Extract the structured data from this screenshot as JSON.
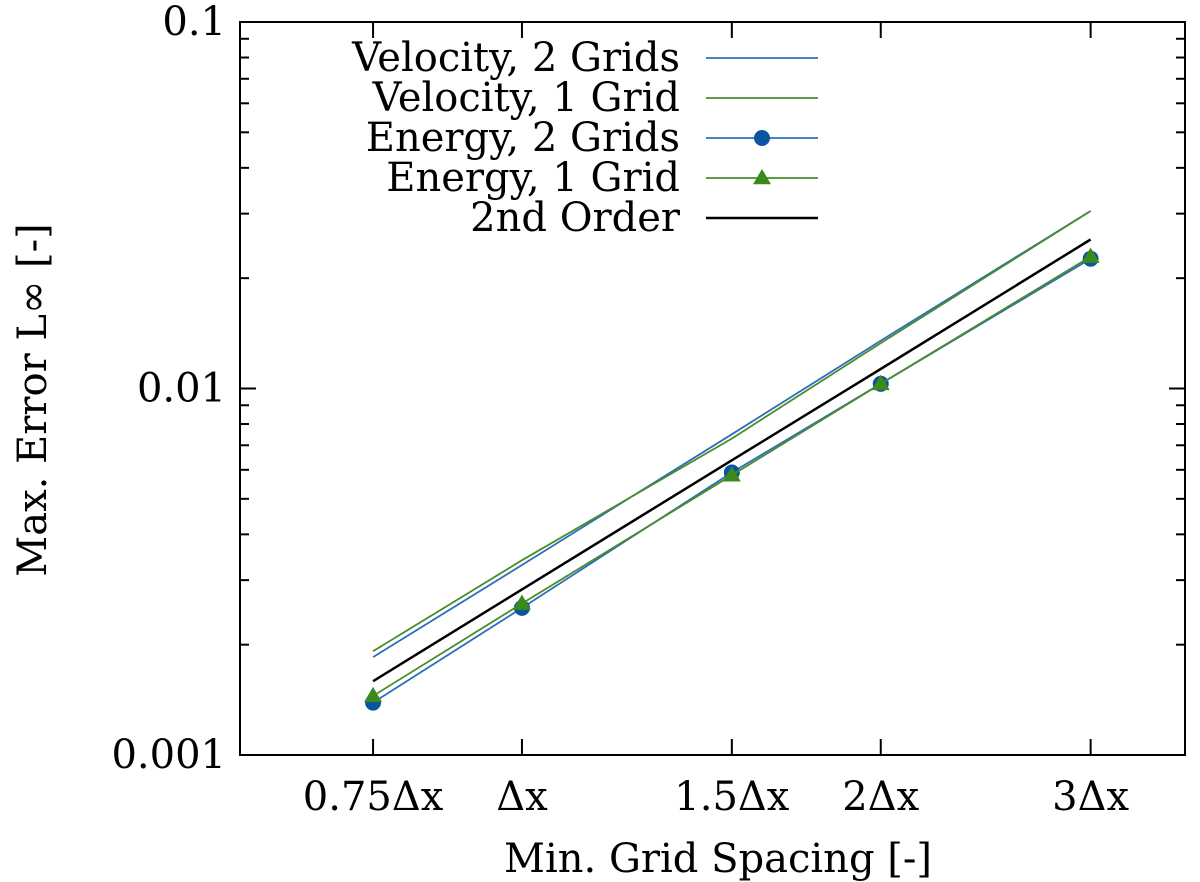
{
  "chart_data": {
    "type": "line",
    "xlabel": "Min. Grid Spacing [-]",
    "ylabel": "Max. Error L∞ [-]",
    "x_scale": "log",
    "y_scale": "log",
    "xlim": [
      0.58,
      3.6
    ],
    "ylim": [
      0.001,
      0.1
    ],
    "x_ticks": [
      {
        "value": 0.75,
        "label": "0.75Δx"
      },
      {
        "value": 1.0,
        "label": "Δx"
      },
      {
        "value": 1.5,
        "label": "1.5Δx"
      },
      {
        "value": 2.0,
        "label": "2Δx"
      },
      {
        "value": 3.0,
        "label": "3Δx"
      }
    ],
    "y_ticks": [
      {
        "value": 0.001,
        "label": "0.001"
      },
      {
        "value": 0.01,
        "label": "0.01"
      },
      {
        "value": 0.1,
        "label": "0.1"
      }
    ],
    "grid": false,
    "legend_position": "top-left",
    "series": [
      {
        "name": "Velocity, 2 Grids",
        "color": "#2c6fbb",
        "marker": "none",
        "x": [
          0.75,
          1.0,
          1.5,
          2.0,
          3.0
        ],
        "y": [
          0.00185,
          0.0033,
          0.0075,
          0.0135,
          0.0305
        ]
      },
      {
        "name": "Velocity, 1 Grid",
        "color": "#4a8c2a",
        "marker": "none",
        "x": [
          0.75,
          1.0,
          1.5,
          2.0,
          3.0
        ],
        "y": [
          0.00192,
          0.0034,
          0.0073,
          0.0133,
          0.0305
        ]
      },
      {
        "name": "Energy, 2 Grids",
        "color": "#2c6fbb",
        "marker": "circle",
        "marker_color": "#0a55a0",
        "x": [
          0.75,
          1.0,
          1.5,
          2.0,
          3.0
        ],
        "y": [
          0.00139,
          0.00252,
          0.0059,
          0.0103,
          0.0226
        ]
      },
      {
        "name": "Energy, 1 Grid",
        "color": "#4a8c2a",
        "marker": "triangle",
        "marker_color": "#3a8a1c",
        "x": [
          0.75,
          1.0,
          1.5,
          2.0,
          3.0
        ],
        "y": [
          0.00145,
          0.00259,
          0.0058,
          0.0103,
          0.0229
        ]
      },
      {
        "name": "2nd Order",
        "color": "#000000",
        "marker": "none",
        "x": [
          0.75,
          1.0,
          1.5,
          2.0,
          3.0
        ],
        "y": [
          0.00159,
          0.00283,
          0.00637,
          0.0113,
          0.0255
        ]
      }
    ]
  }
}
